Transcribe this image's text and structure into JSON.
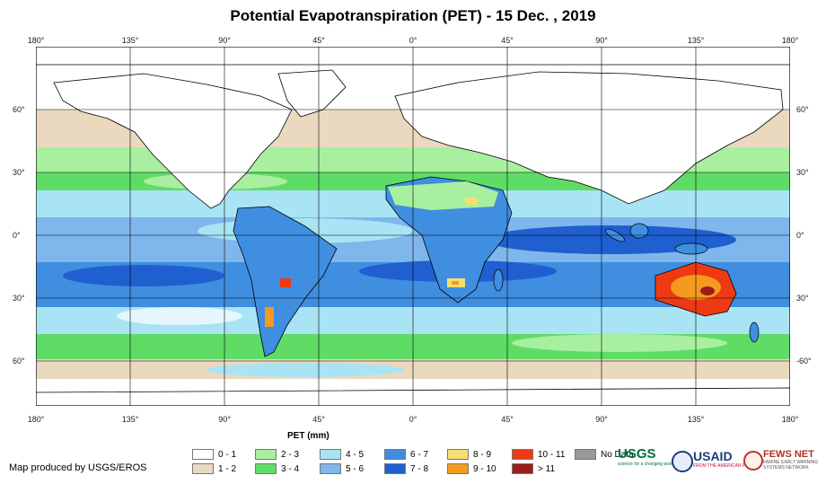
{
  "title": "Potential Evapotranspiration (PET) - 15 Dec. , 2019",
  "lon_labels": [
    "180°",
    "135°",
    "90°",
    "45°",
    "0°",
    "45°",
    "90°",
    "135°",
    "180°"
  ],
  "lat_labels_left": [
    "60°",
    "30°",
    "0°",
    "30°",
    "60°"
  ],
  "lat_labels_right": [
    "60°",
    "30°",
    "0°",
    "30°",
    "-60°"
  ],
  "legend": {
    "title": "PET (mm)",
    "items": [
      {
        "label": "0 - 1",
        "color": "#ffffff"
      },
      {
        "label": "1 - 2",
        "color": "#ead9bf"
      },
      {
        "label": "2 - 3",
        "color": "#a8f0a0"
      },
      {
        "label": "3 - 4",
        "color": "#5fdc66"
      },
      {
        "label": "4 - 5",
        "color": "#a8e4f4"
      },
      {
        "label": "5 - 6",
        "color": "#7fb6ec"
      },
      {
        "label": "6 - 7",
        "color": "#3f8ee0"
      },
      {
        "label": "7 - 8",
        "color": "#1f5fd0"
      },
      {
        "label": "8 - 9",
        "color": "#f7de70"
      },
      {
        "label": "9 - 10",
        "color": "#f59a1e"
      },
      {
        "label": "10 - 11",
        "color": "#ee3a12"
      },
      {
        "label": "> 11",
        "color": "#9c1d1d"
      },
      {
        "label": "No Data",
        "color": "#999999"
      }
    ]
  },
  "credit": "Map produced by USGS/EROS",
  "logos": {
    "usgs": "USGS",
    "usgs_tagline": "science for a changing world",
    "usaid": "USAID",
    "usaid_tagline": "FROM THE AMERICAN PEOPLE",
    "fews": "FEWS NET",
    "fews_tagline": "FAMINE EARLY WARNING SYSTEMS NETWORK"
  }
}
